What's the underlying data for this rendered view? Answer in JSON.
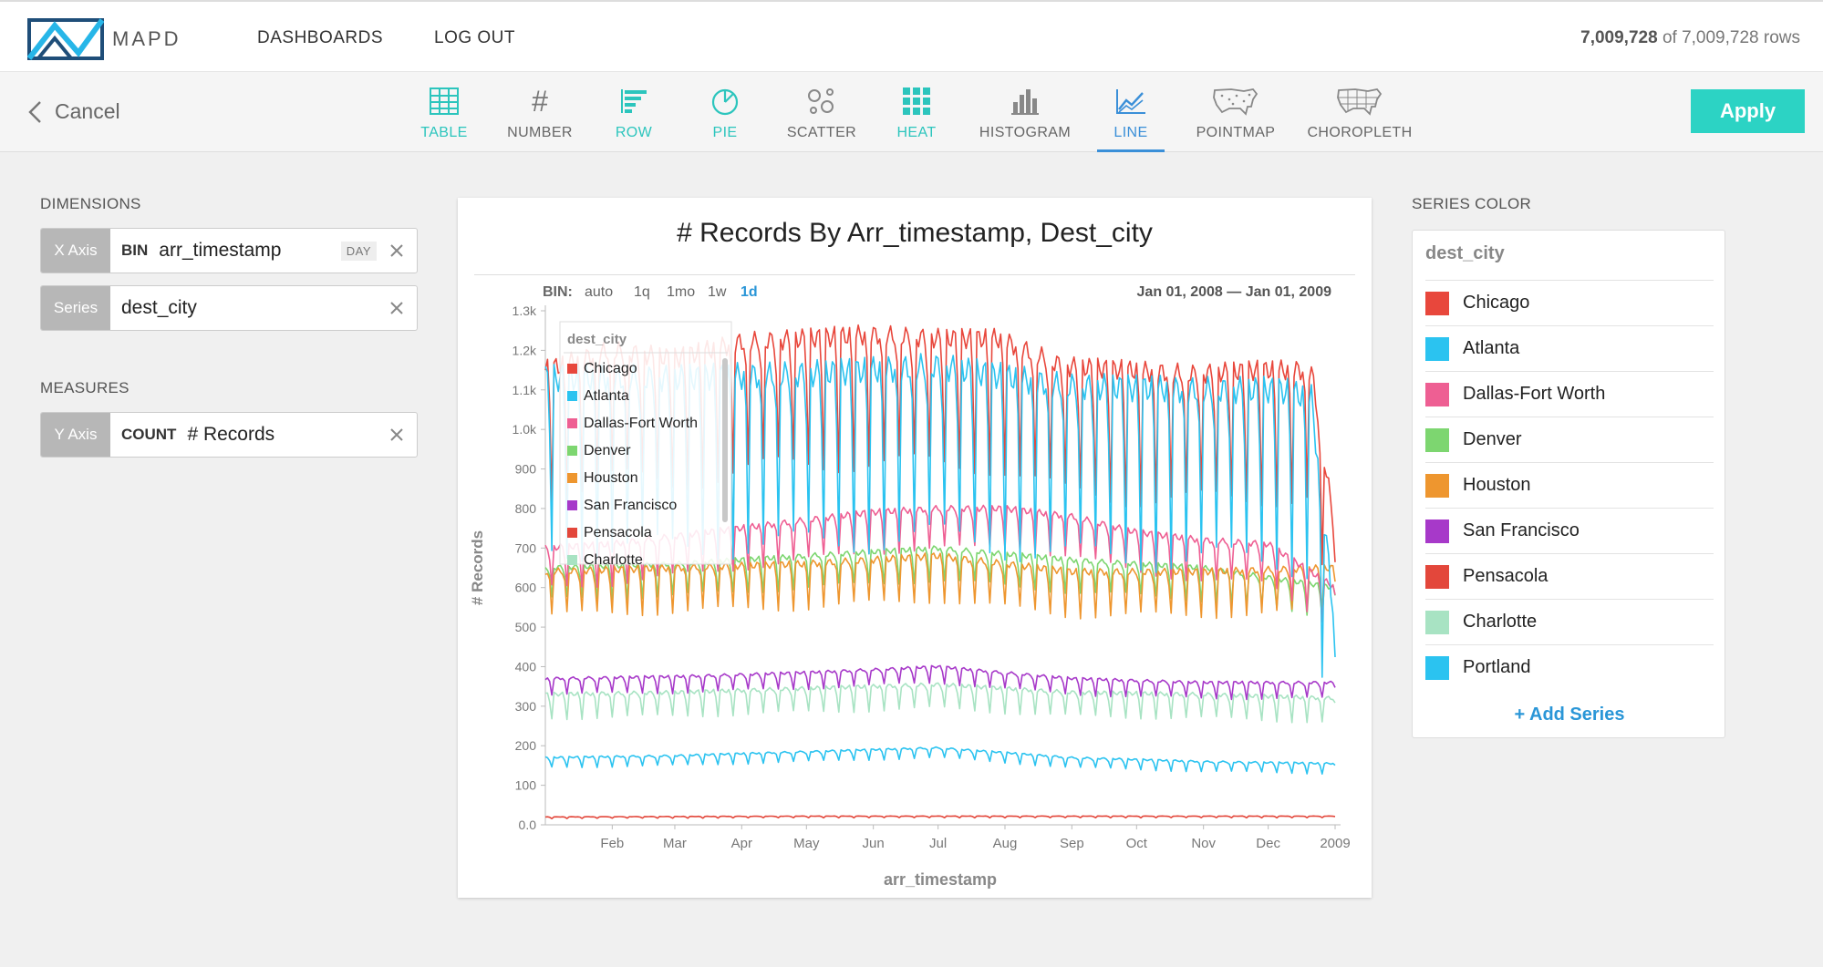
{
  "app": {
    "logo_text": "MAPD",
    "nav": [
      "DASHBOARDS",
      "LOG OUT"
    ],
    "rows_count": "7,009,728",
    "rows_suffix": " of 7,009,728 rows"
  },
  "toolbar": {
    "cancel": "Cancel",
    "apply": "Apply",
    "chart_types": [
      {
        "label": "TABLE",
        "icon": "table-icon",
        "color": "#2cc5bd"
      },
      {
        "label": "NUMBER",
        "icon": "hash-icon",
        "color": "#666666"
      },
      {
        "label": "ROW",
        "icon": "row-chart-icon",
        "color": "#2cc5bd"
      },
      {
        "label": "PIE",
        "icon": "pie-chart-icon",
        "color": "#2cc5bd"
      },
      {
        "label": "SCATTER",
        "icon": "scatter-icon",
        "color": "#666666"
      },
      {
        "label": "HEAT",
        "icon": "heat-grid-icon",
        "color": "#2cc5bd"
      },
      {
        "label": "HISTOGRAM",
        "icon": "histogram-icon",
        "color": "#666666"
      },
      {
        "label": "LINE",
        "icon": "line-chart-icon",
        "color": "#3a8fd8",
        "active": true
      },
      {
        "label": "POINTMAP",
        "icon": "usa-map-icon",
        "color": "#666666"
      },
      {
        "label": "CHOROPLETH",
        "icon": "usa-map-icon",
        "color": "#666666"
      }
    ]
  },
  "dimensions": {
    "title": "DIMENSIONS",
    "x_axis": {
      "tag": "X Axis",
      "agg": "BIN",
      "field": "arr_timestamp",
      "unit": "DAY"
    },
    "series": {
      "tag": "Series",
      "field": "dest_city"
    }
  },
  "measures": {
    "title": "MEASURES",
    "y_axis": {
      "tag": "Y Axis",
      "agg": "COUNT",
      "field": "# Records"
    }
  },
  "series_color": {
    "title": "SERIES COLOR",
    "field": "dest_city",
    "add": "+ Add Series",
    "items": [
      {
        "name": "Chicago",
        "color": "#e8473c"
      },
      {
        "name": "Atlanta",
        "color": "#2bc3f0"
      },
      {
        "name": "Dallas-Fort Worth",
        "color": "#ee5f93"
      },
      {
        "name": "Denver",
        "color": "#7dd670"
      },
      {
        "name": "Houston",
        "color": "#ee962f"
      },
      {
        "name": "San Francisco",
        "color": "#a739c9"
      },
      {
        "name": "Pensacola",
        "color": "#e3473b"
      },
      {
        "name": "Charlotte",
        "color": "#a8e3c3"
      },
      {
        "name": "Portland",
        "color": "#2bc3f0"
      }
    ]
  },
  "chart_data": {
    "type": "line",
    "title": "# Records By Arr_timestamp, Dest_city",
    "xlabel": "arr_timestamp",
    "ylabel": "# Records",
    "bin_label": "BIN:",
    "bin_options": [
      "auto",
      "1q",
      "1mo",
      "1w",
      "1d"
    ],
    "bin_active": "1d",
    "range_start": "Jan 01, 2008",
    "range_end": "Jan 01, 2009",
    "ylim": [
      0,
      1300
    ],
    "yticks": [
      {
        "value": 0,
        "label": "0.0"
      },
      {
        "value": 100,
        "label": "100"
      },
      {
        "value": 200,
        "label": "200"
      },
      {
        "value": 300,
        "label": "300"
      },
      {
        "value": 400,
        "label": "400"
      },
      {
        "value": 500,
        "label": "500"
      },
      {
        "value": 600,
        "label": "600"
      },
      {
        "value": 700,
        "label": "700"
      },
      {
        "value": 800,
        "label": "800"
      },
      {
        "value": 900,
        "label": "900"
      },
      {
        "value": 1000,
        "label": "1.0k"
      },
      {
        "value": 1100,
        "label": "1.1k"
      },
      {
        "value": 1200,
        "label": "1.2k"
      },
      {
        "value": 1300,
        "label": "1.3k"
      }
    ],
    "xticks": [
      {
        "label": "Feb",
        "day": 31
      },
      {
        "label": "Mar",
        "day": 60
      },
      {
        "label": "Apr",
        "day": 91
      },
      {
        "label": "May",
        "day": 121
      },
      {
        "label": "Jun",
        "day": 152
      },
      {
        "label": "Jul",
        "day": 182
      },
      {
        "label": "Aug",
        "day": 213
      },
      {
        "label": "Sep",
        "day": 244
      },
      {
        "label": "Oct",
        "day": 274
      },
      {
        "label": "Nov",
        "day": 305
      },
      {
        "label": "Dec",
        "day": 335
      },
      {
        "label": "2009",
        "day": 366
      }
    ],
    "legend_title": "dest_city",
    "legend_position": "top-left",
    "series": [
      {
        "name": "Chicago",
        "color": "#e8473c",
        "segments": [
          [
            0,
            1150
          ],
          [
            30,
            1200
          ],
          [
            60,
            1180
          ],
          [
            90,
            1220
          ],
          [
            120,
            1230
          ],
          [
            150,
            1240
          ],
          [
            182,
            1230
          ],
          [
            210,
            1230
          ],
          [
            240,
            1160
          ],
          [
            270,
            1150
          ],
          [
            300,
            1140
          ],
          [
            330,
            1150
          ],
          [
            355,
            1150
          ],
          [
            366,
            740
          ]
        ],
        "dip": 320
      },
      {
        "name": "Atlanta",
        "color": "#2bc3f0",
        "segments": [
          [
            0,
            1130
          ],
          [
            60,
            1130
          ],
          [
            120,
            1140
          ],
          [
            182,
            1160
          ],
          [
            240,
            1110
          ],
          [
            300,
            1100
          ],
          [
            340,
            1100
          ],
          [
            355,
            1080
          ],
          [
            366,
            500
          ]
        ],
        "dip": 430
      },
      {
        "name": "Dallas-Fort Worth",
        "color": "#ee5f93",
        "segments": [
          [
            0,
            700
          ],
          [
            30,
            710
          ],
          [
            60,
            730
          ],
          [
            90,
            750
          ],
          [
            120,
            770
          ],
          [
            150,
            790
          ],
          [
            182,
            800
          ],
          [
            213,
            800
          ],
          [
            244,
            780
          ],
          [
            274,
            740
          ],
          [
            305,
            720
          ],
          [
            335,
            710
          ],
          [
            366,
            600
          ]
        ],
        "dip": 100
      },
      {
        "name": "Denver",
        "color": "#7dd670",
        "segments": [
          [
            0,
            650
          ],
          [
            60,
            660
          ],
          [
            120,
            680
          ],
          [
            182,
            700
          ],
          [
            244,
            670
          ],
          [
            305,
            650
          ],
          [
            366,
            600
          ]
        ],
        "dip": 80
      },
      {
        "name": "Houston",
        "color": "#ee962f",
        "segments": [
          [
            0,
            640
          ],
          [
            60,
            650
          ],
          [
            120,
            660
          ],
          [
            182,
            680
          ],
          [
            244,
            640
          ],
          [
            305,
            640
          ],
          [
            366,
            650
          ]
        ],
        "dip": 110
      },
      {
        "name": "San Francisco",
        "color": "#a739c9",
        "segments": [
          [
            0,
            370
          ],
          [
            60,
            375
          ],
          [
            120,
            385
          ],
          [
            182,
            400
          ],
          [
            244,
            370
          ],
          [
            305,
            360
          ],
          [
            366,
            360
          ]
        ],
        "dip": 40
      },
      {
        "name": "Pensacola",
        "color": "#e3473b",
        "segments": [
          [
            0,
            20
          ],
          [
            120,
            22
          ],
          [
            244,
            22
          ],
          [
            366,
            22
          ]
        ],
        "dip": 4
      },
      {
        "name": "Charlotte",
        "color": "#a8e3c3",
        "segments": [
          [
            0,
            330
          ],
          [
            60,
            335
          ],
          [
            120,
            345
          ],
          [
            182,
            355
          ],
          [
            244,
            335
          ],
          [
            305,
            330
          ],
          [
            366,
            320
          ]
        ],
        "dip": 60
      },
      {
        "name": "Portland",
        "color": "#2bc3f0",
        "segments": [
          [
            0,
            170
          ],
          [
            60,
            175
          ],
          [
            120,
            185
          ],
          [
            182,
            195
          ],
          [
            244,
            170
          ],
          [
            305,
            160
          ],
          [
            366,
            155
          ]
        ],
        "dip": 25
      }
    ]
  }
}
